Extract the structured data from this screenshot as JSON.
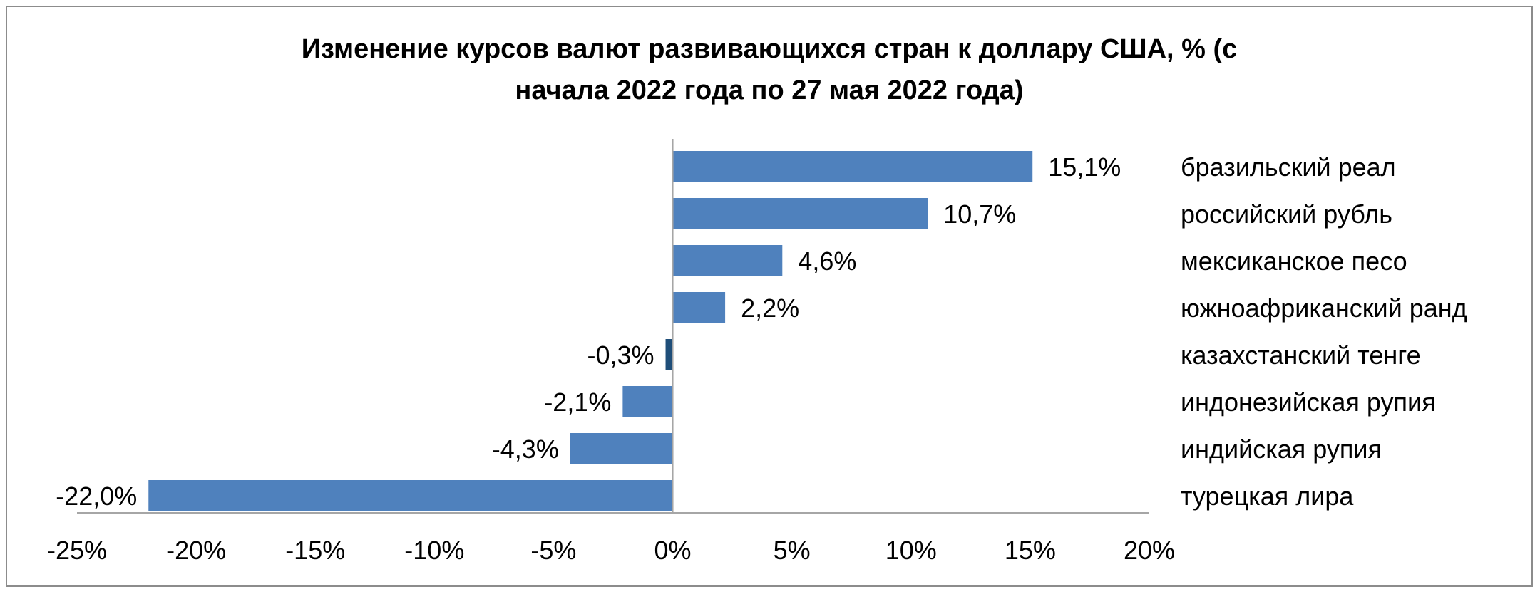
{
  "chart_data": {
    "type": "bar",
    "orientation": "horizontal",
    "title_lines": [
      "Изменение курсов валют развивающихся стран к доллару США, % (с",
      "начала 2022 года по 27 мая 2022 года)"
    ],
    "categories": [
      "бразильский реал",
      "российский рубль",
      "мексиканское песо",
      "южноафриканский ранд",
      "казахстанский тенге",
      "индонезийская рупия",
      "индийская рупия",
      "турецкая лира"
    ],
    "values": [
      15.1,
      10.7,
      4.6,
      2.2,
      -0.3,
      -2.1,
      -4.3,
      -22.0
    ],
    "data_labels": [
      "15,1%",
      "10,7%",
      "4,6%",
      "2,2%",
      "-0,3%",
      "-2,1%",
      "-4,3%",
      "-22,0%"
    ],
    "xlim": [
      -25,
      20
    ],
    "x_ticks": [
      -25,
      -20,
      -15,
      -10,
      -5,
      0,
      5,
      10,
      15,
      20
    ],
    "x_tick_labels": [
      "-25%",
      "-20%",
      "-15%",
      "-10%",
      "-5%",
      "0%",
      "5%",
      "10%",
      "15%",
      "20%"
    ],
    "bar_color": "#4f81bd",
    "highlight_bar_color": "#1f4e79",
    "grid": false,
    "legend": "none"
  }
}
